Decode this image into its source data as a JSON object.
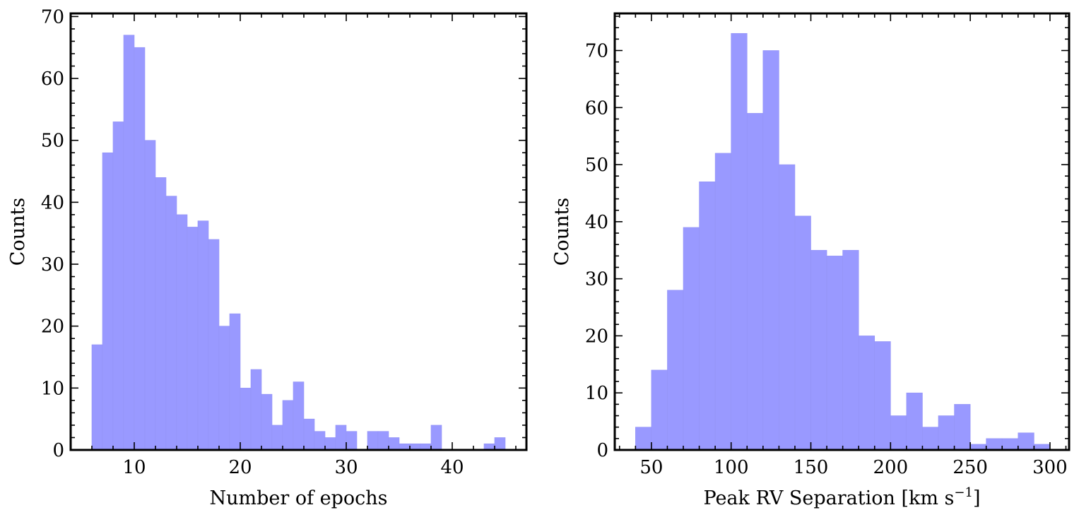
{
  "colors": {
    "bar": "#9999ff",
    "axis": "#000000",
    "background": "#ffffff"
  },
  "chart_data": [
    {
      "type": "bar",
      "subtype": "histogram",
      "xlabel": "Number of epochs",
      "ylabel": "Counts",
      "bin_width": 1,
      "bin_start": 6,
      "values": [
        17,
        48,
        53,
        67,
        65,
        50,
        44,
        41,
        38,
        36,
        37,
        34,
        20,
        22,
        10,
        13,
        9,
        4,
        8,
        11,
        5,
        3,
        2,
        4,
        3,
        0,
        3,
        3,
        2,
        1,
        1,
        1,
        4,
        0,
        0,
        0,
        0,
        1,
        2
      ],
      "xlim": [
        4,
        47
      ],
      "ylim": [
        0,
        70.5
      ],
      "xticks": [
        10,
        20,
        30,
        40
      ],
      "xtick_labels": [
        "10",
        "20",
        "30",
        "40"
      ],
      "yticks": [
        0,
        10,
        20,
        30,
        40,
        50,
        60,
        70
      ],
      "ytick_labels": [
        "0",
        "10",
        "20",
        "30",
        "40",
        "50",
        "60",
        "70"
      ],
      "x_minor_step": 2,
      "y_minor_step": 2
    },
    {
      "type": "bar",
      "subtype": "histogram",
      "xlabel": "Peak RV Separation [km s",
      "xlabel_superscript": "−1",
      "xlabel_suffix": "]",
      "ylabel": "Counts",
      "bin_width": 10,
      "bin_start": 40,
      "values": [
        4,
        14,
        28,
        39,
        47,
        52,
        73,
        59,
        70,
        50,
        41,
        35,
        34,
        35,
        20,
        19,
        6,
        10,
        4,
        6,
        8,
        1,
        2,
        2,
        3,
        1
      ],
      "xlim": [
        27,
        312
      ],
      "ylim": [
        0,
        76.5
      ],
      "xticks": [
        50,
        100,
        150,
        200,
        250,
        300
      ],
      "xtick_labels": [
        "50",
        "100",
        "150",
        "200",
        "250",
        "300"
      ],
      "yticks": [
        0,
        10,
        20,
        30,
        40,
        50,
        60,
        70
      ],
      "ytick_labels": [
        "0",
        "10",
        "20",
        "30",
        "40",
        "50",
        "60",
        "70"
      ],
      "x_minor_step": 10,
      "y_minor_step": 2
    }
  ]
}
